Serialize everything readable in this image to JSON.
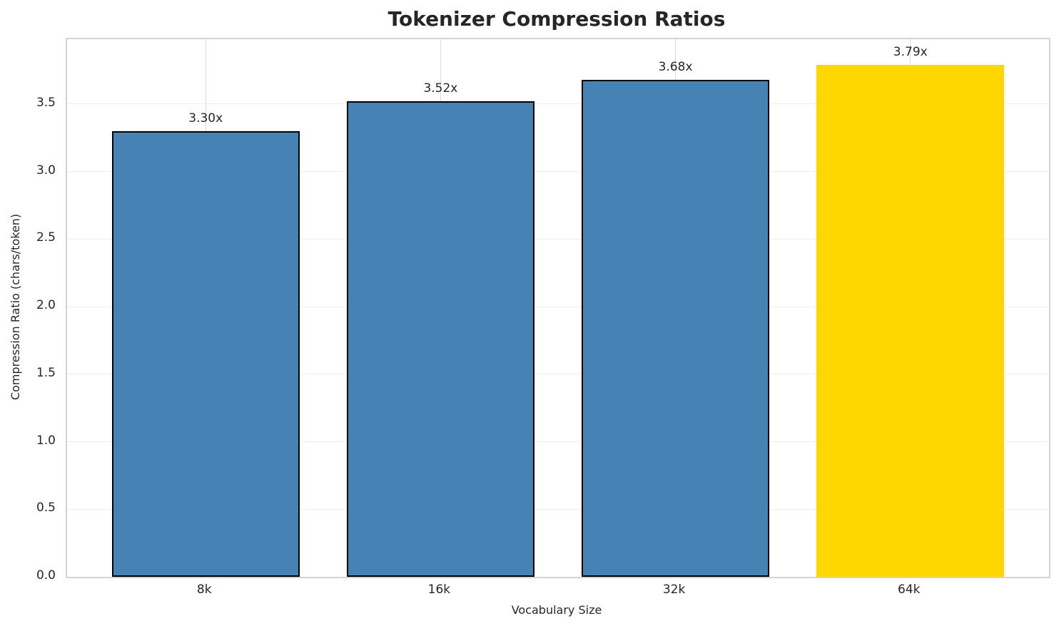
{
  "chart_data": {
    "type": "bar",
    "title": "Tokenizer Compression Ratios",
    "xlabel": "Vocabulary Size",
    "ylabel": "Compression Ratio (chars/token)",
    "categories": [
      "8k",
      "16k",
      "32k",
      "64k"
    ],
    "values": [
      3.3,
      3.52,
      3.68,
      3.79
    ],
    "bar_labels": [
      "3.30x",
      "3.52x",
      "3.68x",
      "3.79x"
    ],
    "bar_colors": [
      "#4682B4",
      "#4682B4",
      "#4682B4",
      "#FFD700"
    ],
    "bar_edge_colors": [
      "#000000",
      "#000000",
      "#000000",
      "none"
    ],
    "highlighted_category": "64k",
    "ylim": [
      0,
      3.98
    ],
    "xlim": [
      -0.59,
      3.59
    ],
    "bar_width": 0.8,
    "yticks": [
      0.0,
      0.5,
      1.0,
      1.5,
      2.0,
      2.5,
      3.0,
      3.5
    ],
    "ytick_labels": [
      "0.0",
      "0.5",
      "1.0",
      "1.5",
      "2.0",
      "2.5",
      "3.0",
      "3.5"
    ],
    "grid": true,
    "grid_orientation": "both",
    "legend": null,
    "background_color": "#ffffff",
    "accent_color": "#FFD700",
    "series_color": "#4682B4"
  }
}
